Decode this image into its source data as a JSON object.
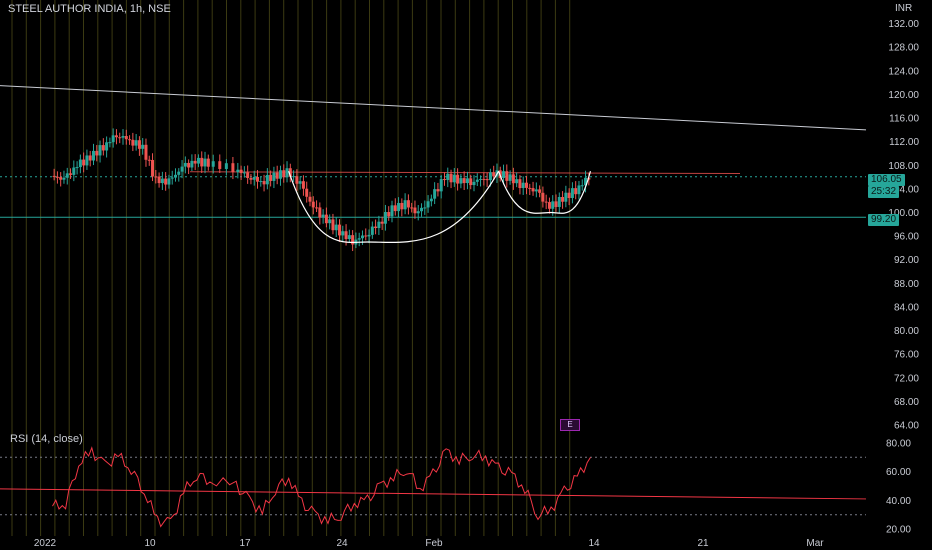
{
  "header": {
    "title": "STEEL AUTHOR INDIA, 1h, NSE",
    "currency": "INR"
  },
  "price_axis": {
    "ticks": [
      "132.00",
      "128.00",
      "124.00",
      "120.00",
      "116.00",
      "112.00",
      "108.00",
      "104.00",
      "100.00",
      "96.00",
      "92.00",
      "88.00",
      "84.00",
      "80.00",
      "76.00",
      "72.00",
      "68.00",
      "64.00"
    ]
  },
  "rsi_axis": {
    "ticks": [
      "80.00",
      "60.00",
      "40.00",
      "20.00"
    ]
  },
  "time_axis": {
    "labels": [
      "2022",
      "10",
      "17",
      "24",
      "Feb",
      "14",
      "21",
      "Mar"
    ]
  },
  "price_tags": {
    "last": "106.05",
    "countdown": "25:32",
    "support": "99.20"
  },
  "rsi": {
    "title": "RSI (14, close)"
  },
  "earnings_badge": "E",
  "colors": {
    "up": "#26a69a",
    "down": "#ef5350",
    "rsi": "#f23645",
    "support": "#26a69a",
    "pattern": "#ffffff"
  },
  "chart_data": {
    "type": "candlestick",
    "price_axis_range": [
      64,
      136
    ],
    "rsi_axis_range": [
      18,
      82
    ],
    "rsi_levels": [
      70,
      30
    ],
    "support_level": 99.2,
    "resistance_level": 106.9,
    "last_price": 106.05,
    "close_path": [
      {
        "d": "2022-01-03",
        "v": 106.2
      },
      {
        "d": "2022-01-04",
        "v": 105.6
      },
      {
        "d": "2022-01-05",
        "v": 107.9
      },
      {
        "d": "2022-01-06",
        "v": 109.4
      },
      {
        "d": "2022-01-07",
        "v": 111.2
      },
      {
        "d": "2022-01-08",
        "v": 113.2
      },
      {
        "d": "2022-01-09",
        "v": 112.3
      },
      {
        "d": "2022-01-10",
        "v": 111.0
      },
      {
        "d": "2022-01-11",
        "v": 105.4
      },
      {
        "d": "2022-01-12",
        "v": 105.2
      },
      {
        "d": "2022-01-13",
        "v": 107.6
      },
      {
        "d": "2022-01-14",
        "v": 108.6
      },
      {
        "d": "2022-01-15",
        "v": 108.4
      },
      {
        "d": "2022-01-17",
        "v": 107.5
      },
      {
        "d": "2022-01-18",
        "v": 106.2
      },
      {
        "d": "2022-01-19",
        "v": 105.2
      },
      {
        "d": "2022-01-20",
        "v": 106.2
      },
      {
        "d": "2022-01-21",
        "v": 106.8
      },
      {
        "d": "2022-01-22",
        "v": 104.8
      },
      {
        "d": "2022-01-23",
        "v": 100.8
      },
      {
        "d": "2022-01-24",
        "v": 98.6
      },
      {
        "d": "2022-01-25",
        "v": 96.8
      },
      {
        "d": "2022-01-26",
        "v": 95.2
      },
      {
        "d": "2022-01-27",
        "v": 96.2
      },
      {
        "d": "2022-01-28",
        "v": 98.2
      },
      {
        "d": "2022-01-29",
        "v": 100.6
      },
      {
        "d": "2022-01-30",
        "v": 101.4
      },
      {
        "d": "2022-01-31",
        "v": 99.8
      },
      {
        "d": "2022-02-01",
        "v": 102.4
      },
      {
        "d": "2022-02-02",
        "v": 106.0
      },
      {
        "d": "2022-02-03",
        "v": 105.6
      },
      {
        "d": "2022-02-04",
        "v": 105.2
      },
      {
        "d": "2022-02-05",
        "v": 105.8
      },
      {
        "d": "2022-02-06",
        "v": 106.8
      },
      {
        "d": "2022-02-07",
        "v": 105.8
      },
      {
        "d": "2022-02-08",
        "v": 104.4
      },
      {
        "d": "2022-02-09",
        "v": 103.6
      },
      {
        "d": "2022-02-10",
        "v": 100.8
      },
      {
        "d": "2022-02-11",
        "v": 102.4
      },
      {
        "d": "2022-02-12",
        "v": 103.8
      },
      {
        "d": "2022-02-13",
        "v": 106.05
      }
    ],
    "rsi_path": [
      {
        "d": "2022-01-03",
        "v": 36
      },
      {
        "d": "2022-01-04",
        "v": 38
      },
      {
        "d": "2022-01-05",
        "v": 66
      },
      {
        "d": "2022-01-06",
        "v": 74
      },
      {
        "d": "2022-01-07",
        "v": 64
      },
      {
        "d": "2022-01-08",
        "v": 71
      },
      {
        "d": "2022-01-09",
        "v": 62
      },
      {
        "d": "2022-01-10",
        "v": 46
      },
      {
        "d": "2022-01-11",
        "v": 26
      },
      {
        "d": "2022-01-12",
        "v": 24
      },
      {
        "d": "2022-01-13",
        "v": 46
      },
      {
        "d": "2022-01-14",
        "v": 58
      },
      {
        "d": "2022-01-15",
        "v": 54
      },
      {
        "d": "2022-01-17",
        "v": 50
      },
      {
        "d": "2022-01-18",
        "v": 40
      },
      {
        "d": "2022-01-19",
        "v": 32
      },
      {
        "d": "2022-01-20",
        "v": 48
      },
      {
        "d": "2022-01-21",
        "v": 56
      },
      {
        "d": "2022-01-22",
        "v": 38
      },
      {
        "d": "2022-01-23",
        "v": 30
      },
      {
        "d": "2022-01-24",
        "v": 26
      },
      {
        "d": "2022-01-25",
        "v": 30
      },
      {
        "d": "2022-01-26",
        "v": 38
      },
      {
        "d": "2022-01-27",
        "v": 40
      },
      {
        "d": "2022-01-28",
        "v": 50
      },
      {
        "d": "2022-01-29",
        "v": 56
      },
      {
        "d": "2022-01-30",
        "v": 62
      },
      {
        "d": "2022-01-31",
        "v": 48
      },
      {
        "d": "2022-02-01",
        "v": 58
      },
      {
        "d": "2022-02-02",
        "v": 74
      },
      {
        "d": "2022-02-03",
        "v": 68
      },
      {
        "d": "2022-02-04",
        "v": 72
      },
      {
        "d": "2022-02-05",
        "v": 70
      },
      {
        "d": "2022-02-06",
        "v": 62
      },
      {
        "d": "2022-02-07",
        "v": 58
      },
      {
        "d": "2022-02-08",
        "v": 48
      },
      {
        "d": "2022-02-09",
        "v": 30
      },
      {
        "d": "2022-02-10",
        "v": 34
      },
      {
        "d": "2022-02-11",
        "v": 46
      },
      {
        "d": "2022-02-12",
        "v": 56
      },
      {
        "d": "2022-02-13",
        "v": 70
      }
    ],
    "price_trendline": [
      {
        "d": "2021-12-30",
        "v": 121.5
      },
      {
        "d": "2022-03-06",
        "v": 114.0
      }
    ],
    "rsi_trendline": [
      {
        "d": "2021-12-30",
        "v": 48
      },
      {
        "d": "2022-03-06",
        "v": 41
      }
    ],
    "cup_patterns": [
      {
        "start": {
          "d": "2022-01-21",
          "v": 107.0
        },
        "bottom": {
          "d": "2022-01-27",
          "v": 95.0
        },
        "end": {
          "d": "2022-02-06",
          "v": 107.0
        }
      },
      {
        "start": {
          "d": "2022-02-06",
          "v": 107.0
        },
        "bottom": {
          "d": "2022-02-10",
          "v": 100.0
        },
        "end": {
          "d": "2022-02-13",
          "v": 107.0
        }
      }
    ],
    "grid": false,
    "legend": "none"
  }
}
